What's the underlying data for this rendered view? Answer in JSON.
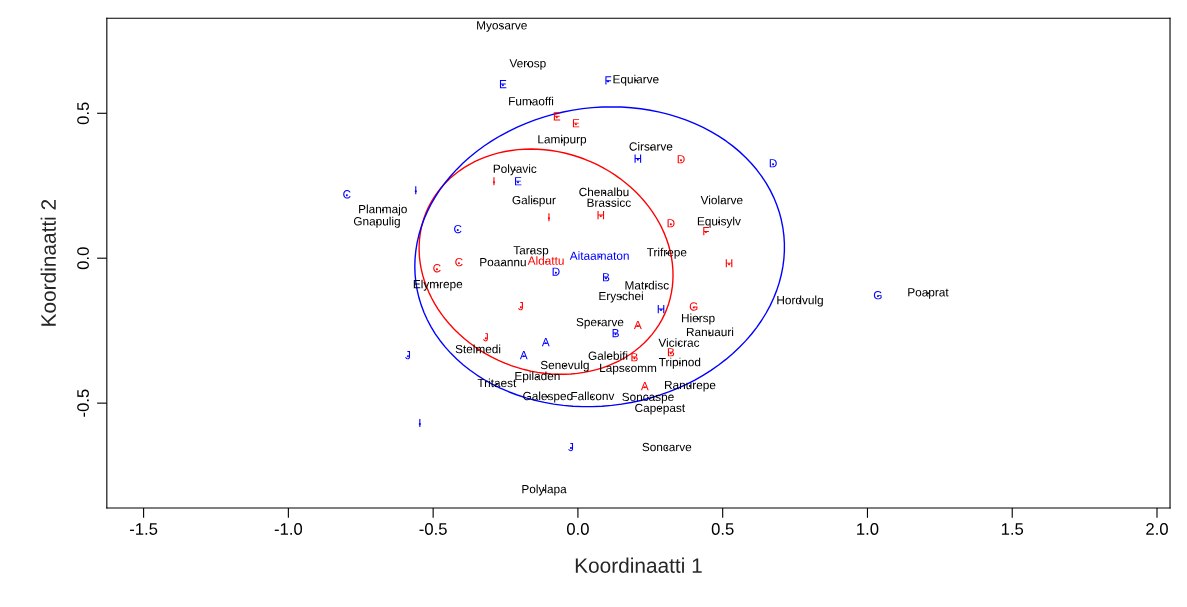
{
  "chart_data": {
    "type": "scatter",
    "xlabel": "Koordinaatti 1",
    "ylabel": "Koordinaatti 2",
    "xlim": [
      -1.627,
      2.045
    ],
    "ylim": [
      -0.862,
      0.828
    ],
    "xticks": [
      {
        "value": -1.5,
        "label": "-1.5"
      },
      {
        "value": -1.0,
        "label": "-1.0"
      },
      {
        "value": -0.5,
        "label": "-0.5"
      },
      {
        "value": 0.0,
        "label": "0.0"
      },
      {
        "value": 0.5,
        "label": "0.5"
      },
      {
        "value": 1.0,
        "label": "1.0"
      },
      {
        "value": 1.5,
        "label": "1.5"
      },
      {
        "value": 2.0,
        "label": "2.0"
      }
    ],
    "yticks": [
      {
        "value": -0.5,
        "label": "-0.5"
      },
      {
        "value": 0.0,
        "label": "0.0"
      },
      {
        "value": 0.5,
        "label": "0.5"
      }
    ],
    "grid": false,
    "legend": false,
    "series": [
      {
        "color": "#000000",
        "x": [
          -0.263,
          -0.173,
          0.2,
          -0.162,
          -0.055,
          0.252,
          -0.218,
          0.09,
          0.107,
          -0.152,
          -0.674,
          -0.694,
          0.497,
          0.487,
          -0.162,
          0.307,
          -0.259,
          0.238,
          0.149,
          -0.484,
          0.767,
          1.209,
          0.415,
          0.076,
          0.456,
          0.349,
          -0.345,
          0.104,
          0.173,
          0.352,
          -0.045,
          -0.14,
          -0.28,
          0.387,
          -0.105,
          0.05,
          0.242,
          0.283,
          0.307,
          -0.117
        ],
        "values": [
          0.8,
          0.669,
          0.614,
          0.538,
          0.407,
          0.382,
          0.305,
          0.225,
          0.188,
          0.197,
          0.166,
          0.124,
          0.197,
          0.124,
          0.024,
          0.017,
          -0.017,
          -0.097,
          -0.134,
          -0.093,
          -0.148,
          -0.121,
          -0.21,
          -0.224,
          -0.258,
          -0.295,
          -0.317,
          -0.34,
          -0.382,
          -0.362,
          -0.372,
          -0.41,
          -0.434,
          -0.441,
          -0.479,
          -0.479,
          -0.482,
          -0.52,
          -0.655,
          -0.8
        ],
        "value_labels": [
          "Myosarve",
          "Verosp",
          "Equiarve",
          "Fumaoffi",
          "Lamipurp",
          "Cirsarve",
          "Polyavic",
          "Chenalbu",
          "Brassicc",
          "Galispur",
          "Planmajo",
          "Gnapulig",
          "Violarve",
          "Equisylv",
          "Tarasp",
          "Trifrepe",
          "Poaannu",
          "Matrdisc",
          "Eryschei",
          "Elymrepe",
          "Hordvulg",
          "Poaprat",
          "Hiersp",
          "Sperarve",
          "Ranuauri",
          "Vicicrac",
          "Stelmedi",
          "Galebifi",
          "Lapscomm",
          "Tripinod",
          "Senevulg",
          "Epiladen",
          "Tritaest",
          "Ranurepe",
          "Galespec",
          "Fallconv",
          "Soncaspe",
          "Capepast",
          "Soncarve",
          "Polylapa"
        ]
      },
      {
        "color": "#ff0000",
        "x": [
          -0.073,
          -0.007,
          0.356,
          -0.29,
          -0.1,
          0.079,
          0.321,
          0.442,
          -0.411,
          -0.487,
          0.522,
          -0.197,
          0.4,
          0.207,
          -0.318,
          0.321,
          0.195,
          0.231
        ],
        "values": [
          0.486,
          0.462,
          0.338,
          0.262,
          0.138,
          0.145,
          0.117,
          0.09,
          -0.017,
          -0.038,
          -0.021,
          -0.169,
          -0.17,
          -0.234,
          -0.276,
          -0.328,
          -0.345,
          -0.445
        ],
        "value_labels": [
          "E",
          "E",
          "D",
          "I",
          "I",
          "H",
          "D",
          "F",
          "C",
          "C",
          "H",
          "J",
          "G",
          "A",
          "J",
          "B",
          "B",
          "A"
        ]
      },
      {
        "color": "#0000ff",
        "x": [
          -0.259,
          0.104,
          -0.798,
          -0.56,
          0.207,
          0.674,
          -0.207,
          -0.415,
          -0.076,
          0.097,
          0.287,
          0.13,
          -0.111,
          -0.187,
          -0.587,
          1.036,
          -0.546,
          -0.024
        ],
        "values": [
          0.597,
          0.61,
          0.217,
          0.231,
          0.34,
          0.324,
          0.262,
          0.097,
          -0.05,
          -0.069,
          -0.179,
          -0.262,
          -0.293,
          -0.338,
          -0.338,
          -0.131,
          -0.572,
          -0.655
        ],
        "value_labels": [
          "E",
          "F",
          "C",
          "I",
          "H",
          "D",
          "E",
          "C",
          "D",
          "B",
          "H",
          "B",
          "A",
          "A",
          "J",
          "G",
          "I",
          "J"
        ]
      },
      {
        "color": "#ff0000",
        "x": [
          -0.11
        ],
        "values": [
          -0.012
        ],
        "value_labels": [
          "Aldattu"
        ]
      },
      {
        "color": "#0000ff",
        "x": [
          0.075
        ],
        "values": [
          0.005
        ],
        "value_labels": [
          "Aitaamaton"
        ]
      }
    ]
  }
}
